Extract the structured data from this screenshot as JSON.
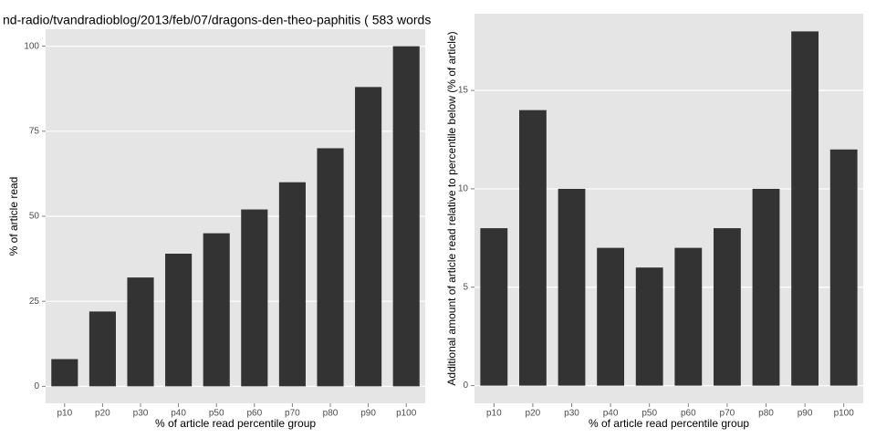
{
  "chart_data": [
    {
      "type": "bar",
      "title": "nd-radio/tvandradioblog/2013/feb/07/dragons-den-theo-paphitis ( 583 words",
      "x_label": "% of article read percentile group",
      "y_label": "% of article read",
      "categories": [
        "p10",
        "p20",
        "p30",
        "p40",
        "p50",
        "p60",
        "p70",
        "p80",
        "p90",
        "p100"
      ],
      "values": [
        8,
        22,
        32,
        39,
        45,
        52,
        60,
        70,
        88,
        100
      ],
      "color": "#333333",
      "ylim": [
        -5,
        105
      ],
      "yticks": [
        0,
        25,
        50,
        75,
        100
      ],
      "grid": true
    },
    {
      "type": "bar",
      "x_label": "% of article read percentile group",
      "y_label": "Additional amount of article read relative to percentile below (% of article)",
      "categories": [
        "p10",
        "p20",
        "p30",
        "p40",
        "p50",
        "p60",
        "p70",
        "p80",
        "p90",
        "p100"
      ],
      "values": [
        8,
        14,
        10,
        7,
        6,
        7,
        8,
        10,
        18,
        12
      ],
      "color": "#333333",
      "ylim": [
        -0.9,
        18.9
      ],
      "yticks": [
        0,
        5,
        10,
        15
      ],
      "grid": true
    }
  ]
}
